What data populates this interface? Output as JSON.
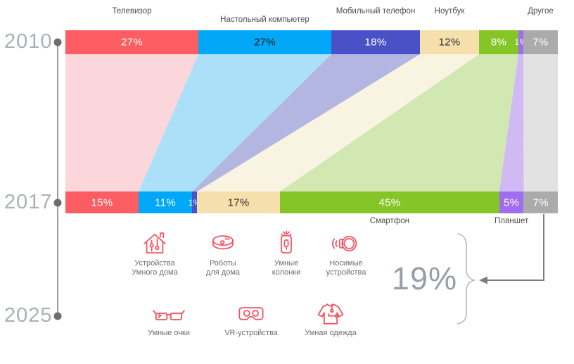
{
  "chart_data": {
    "type": "area",
    "subtype": "alluvial-flow",
    "title": "",
    "timeline_years": [
      "2010",
      "2017",
      "2025"
    ],
    "columns": [
      "2010",
      "2017"
    ],
    "series": [
      {
        "slug": "tv",
        "name": "Телевизор",
        "values": [
          27,
          15
        ],
        "labels": [
          "27%",
          "15%"
        ],
        "color": "#fb5d62",
        "flow_color": "#fbd3d7",
        "text_colors": [
          "#ffffff",
          "#ffffff"
        ],
        "name_position": "top",
        "name_row": 1
      },
      {
        "slug": "desktop",
        "name": "Настольный компьютер",
        "values": [
          27,
          11
        ],
        "labels": [
          "27%",
          "11%"
        ],
        "color": "#00a8f7",
        "flow_color": "#a5ddf8",
        "text_colors": [
          "#16181f",
          "#ffffff"
        ],
        "name_position": "top",
        "name_row": 2
      },
      {
        "slug": "mobile-phone",
        "name": "Мобильный телефон",
        "values": [
          18,
          1
        ],
        "labels": [
          "18%",
          "1%"
        ],
        "color": "#4a50c6",
        "flow_color": "#abb0de",
        "text_colors": [
          "#ffffff",
          "#ffffff"
        ],
        "name_position": "top",
        "name_row": 1
      },
      {
        "slug": "laptop",
        "name": "Ноутбук",
        "values": [
          12,
          17
        ],
        "labels": [
          "12%",
          "17%"
        ],
        "color": "#f5dfac",
        "flow_color": "#f8f2df",
        "text_colors": [
          "#2e2e2e",
          "#2e2e2e"
        ],
        "name_position": "top",
        "name_row": 1
      },
      {
        "slug": "smartphone",
        "name": "Смартфон",
        "values": [
          8,
          45
        ],
        "labels": [
          "8%",
          "45%"
        ],
        "color": "#86c526",
        "flow_color": "#cde6ab",
        "text_colors": [
          "#ffffff",
          "#ffffff"
        ],
        "name_position": "bottom"
      },
      {
        "slug": "tablet",
        "name": "Планшет",
        "values": [
          1,
          5
        ],
        "labels": [
          "1%",
          "5%"
        ],
        "color": "#a06cf0",
        "flow_color": "#cdb4f2",
        "text_colors": [
          "#ffffff",
          "#ffffff"
        ],
        "name_position": "bottom"
      },
      {
        "slug": "other",
        "name": "Другое",
        "values": [
          7,
          7
        ],
        "labels": [
          "7%",
          "7%"
        ],
        "color": "#ababab",
        "flow_color": "#e0e0e0",
        "text_colors": [
          "#ffffff",
          "#ffffff"
        ],
        "name_position": "top",
        "name_row": 1
      }
    ],
    "callout": {
      "value": "19%"
    }
  },
  "timeline": {
    "years": [
      {
        "label": "2010"
      },
      {
        "label": "2017"
      },
      {
        "label": "2025"
      }
    ]
  },
  "future_devices": {
    "row1": [
      {
        "icon": "smart-home-icon",
        "caption": [
          "Устройства",
          "Умного дома"
        ]
      },
      {
        "icon": "robot-vacuum-icon",
        "caption": [
          "Роботы",
          "для дома"
        ]
      },
      {
        "icon": "smart-speaker-icon",
        "caption": [
          "Умные",
          "колонки"
        ]
      },
      {
        "icon": "wearable-icon",
        "caption": [
          "Носимые",
          "устройства"
        ]
      }
    ],
    "row2": [
      {
        "icon": "smart-glasses-icon",
        "caption": [
          "Умные очки"
        ]
      },
      {
        "icon": "vr-headset-icon",
        "caption": [
          "VR-устройства"
        ]
      },
      {
        "icon": "smart-clothing-icon",
        "caption": [
          "Умная одежда"
        ]
      }
    ]
  }
}
